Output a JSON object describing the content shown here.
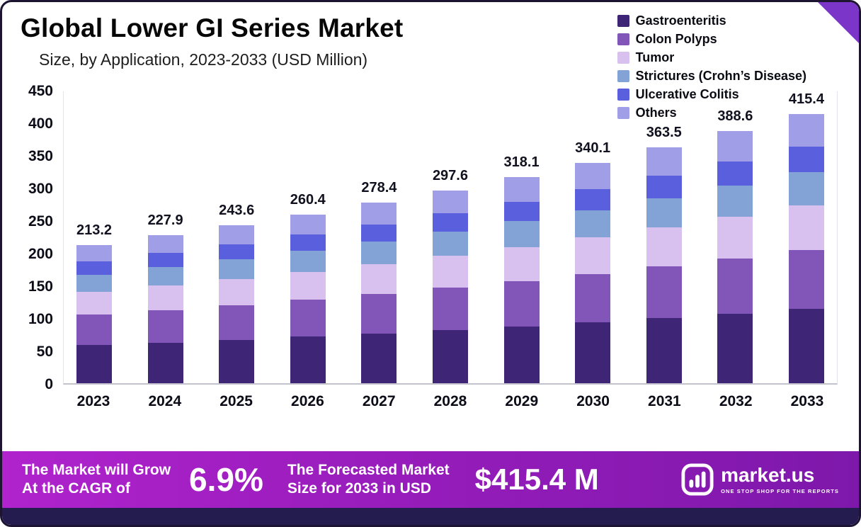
{
  "header": {
    "title": "Global Lower GI Series Market",
    "subtitle": "Size, by Application, 2023-2033 (USD Million)"
  },
  "legend": [
    {
      "label": "Gastroenteritis",
      "color": "#3e2575"
    },
    {
      "label": "Colon Polyps",
      "color": "#8256b8"
    },
    {
      "label": "Tumor",
      "color": "#d8c1ee"
    },
    {
      "label": "Strictures (Crohn’s Disease)",
      "color": "#83a3d6"
    },
    {
      "label": "Ulcerative Colitis",
      "color": "#5a60dd"
    },
    {
      "label": "Others",
      "color": "#a19ee8"
    }
  ],
  "chart_data": {
    "type": "bar",
    "stacked": true,
    "title": "Global Lower GI Series Market Size, by Application, 2023-2033 (USD Million)",
    "categories": [
      "2023",
      "2024",
      "2025",
      "2026",
      "2027",
      "2028",
      "2029",
      "2030",
      "2031",
      "2032",
      "2033"
    ],
    "totals": [
      213.2,
      227.9,
      243.6,
      260.4,
      278.4,
      297.6,
      318.1,
      340.1,
      363.5,
      388.6,
      415.4
    ],
    "series": [
      {
        "name": "Gastroenteritis",
        "values": [
          58.6,
          62.7,
          67.0,
          71.6,
          76.6,
          81.8,
          87.5,
          93.5,
          100.0,
          106.9,
          114.2
        ]
      },
      {
        "name": "Colon Polyps",
        "values": [
          46.9,
          50.1,
          53.6,
          57.3,
          61.2,
          65.5,
          70.0,
          74.8,
          80.0,
          85.5,
          91.4
        ]
      },
      {
        "name": "Tumor",
        "values": [
          35.2,
          37.6,
          40.2,
          43.0,
          45.9,
          49.1,
          52.5,
          56.1,
          60.0,
          64.1,
          68.5
        ]
      },
      {
        "name": "Strictures (Crohn’s Disease)",
        "values": [
          26.7,
          28.5,
          30.5,
          32.6,
          34.8,
          37.2,
          39.8,
          42.5,
          45.4,
          48.6,
          51.9
        ]
      },
      {
        "name": "Ulcerative Colitis",
        "values": [
          20.3,
          21.7,
          23.1,
          24.7,
          26.4,
          28.3,
          30.2,
          32.3,
          34.5,
          36.9,
          39.5
        ]
      },
      {
        "name": "Others",
        "values": [
          25.6,
          27.3,
          29.2,
          31.2,
          33.4,
          35.7,
          38.2,
          40.8,
          43.6,
          46.6,
          49.8
        ]
      }
    ],
    "ylim": [
      0,
      450
    ],
    "yticks": [
      0,
      50,
      100,
      150,
      200,
      250,
      300,
      350,
      400,
      450
    ],
    "ylabel": "",
    "xlabel": "",
    "grid": false,
    "legend_position": "top-right"
  },
  "banner": {
    "left_line1": "The Market will Grow",
    "left_line2": "At the CAGR of",
    "cagr": "6.9%",
    "mid_line1": "The Forecasted Market",
    "mid_line2": "Size for 2033 in USD",
    "value": "$415.4 M",
    "brand": "market.us",
    "tagline": "ONE STOP SHOP FOR THE REPORTS"
  }
}
